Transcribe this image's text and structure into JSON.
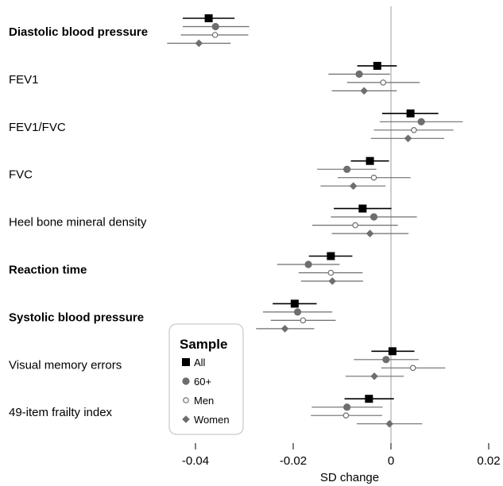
{
  "chart_data": {
    "type": "forest",
    "title": "",
    "xlabel": "SD change",
    "ylabel": "",
    "xlim": [
      -0.047,
      0.022
    ],
    "xticks": [
      -0.04,
      -0.02,
      0,
      0.02
    ],
    "xtick_labels": [
      "-0.04",
      "-0.02",
      "0",
      "0.02"
    ],
    "reference_line": 0,
    "grid": false,
    "legend": {
      "title": "Sample",
      "position": "bottom-left",
      "entries": [
        {
          "name": "All",
          "marker": "square-filled",
          "color": "#000000"
        },
        {
          "name": "60+",
          "marker": "circle-filled",
          "color": "#6e6e6e"
        },
        {
          "name": "Men",
          "marker": "circle-open",
          "color": "#6e6e6e"
        },
        {
          "name": "Women",
          "marker": "diamond-filled",
          "color": "#6e6e6e"
        }
      ]
    },
    "outcomes": [
      {
        "label": "Diastolic blood pressure",
        "bold": true
      },
      {
        "label": "FEV1",
        "bold": false
      },
      {
        "label": "FEV1/FVC",
        "bold": false
      },
      {
        "label": "FVC",
        "bold": false
      },
      {
        "label": "Heel bone mineral density",
        "bold": false
      },
      {
        "label": "Reaction time",
        "bold": true
      },
      {
        "label": "Systolic blood pressure",
        "bold": true
      },
      {
        "label": "Visual memory errors",
        "bold": false
      },
      {
        "label": "49-item frailty index",
        "bold": false
      }
    ],
    "series": [
      {
        "name": "All",
        "estimates": [
          {
            "est": -0.0373,
            "lo": -0.0426,
            "hi": -0.032
          },
          {
            "est": -0.0028,
            "lo": -0.0069,
            "hi": 0.0012
          },
          {
            "est": 0.004,
            "lo": -0.0018,
            "hi": 0.0097
          },
          {
            "est": -0.0043,
            "lo": -0.0082,
            "hi": -0.0004
          },
          {
            "est": -0.0058,
            "lo": -0.0117,
            "hi": 0.0001
          },
          {
            "est": -0.0123,
            "lo": -0.0168,
            "hi": -0.0079
          },
          {
            "est": -0.0197,
            "lo": -0.0242,
            "hi": -0.0152
          },
          {
            "est": 0.0003,
            "lo": -0.004,
            "hi": 0.0048
          },
          {
            "est": -0.0045,
            "lo": -0.0095,
            "hi": 0.0006
          }
        ]
      },
      {
        "name": "60+",
        "estimates": [
          {
            "est": -0.0359,
            "lo": -0.0426,
            "hi": -0.029
          },
          {
            "est": -0.0065,
            "lo": -0.0128,
            "hi": -0.0002
          },
          {
            "est": 0.0062,
            "lo": -0.0023,
            "hi": 0.0147
          },
          {
            "est": -0.009,
            "lo": -0.0151,
            "hi": -0.003
          },
          {
            "est": -0.0035,
            "lo": -0.0123,
            "hi": 0.0053
          },
          {
            "est": -0.0169,
            "lo": -0.0233,
            "hi": -0.0105
          },
          {
            "est": -0.0191,
            "lo": -0.0262,
            "hi": -0.012
          },
          {
            "est": -0.001,
            "lo": -0.0076,
            "hi": 0.0057
          },
          {
            "est": -0.009,
            "lo": -0.0162,
            "hi": -0.0017
          }
        ]
      },
      {
        "name": "Men",
        "estimates": [
          {
            "est": -0.036,
            "lo": -0.043,
            "hi": -0.0292
          },
          {
            "est": -0.0016,
            "lo": -0.009,
            "hi": 0.0059
          },
          {
            "est": 0.0047,
            "lo": -0.0035,
            "hi": 0.0128
          },
          {
            "est": -0.0035,
            "lo": -0.0109,
            "hi": 0.004
          },
          {
            "est": -0.0073,
            "lo": -0.0161,
            "hi": 0.0014
          },
          {
            "est": -0.0123,
            "lo": -0.0189,
            "hi": -0.0058
          },
          {
            "est": -0.018,
            "lo": -0.0246,
            "hi": -0.0113
          },
          {
            "est": 0.0045,
            "lo": -0.002,
            "hi": 0.0111
          },
          {
            "est": -0.0092,
            "lo": -0.0164,
            "hi": -0.0018
          }
        ]
      },
      {
        "name": "Women",
        "estimates": [
          {
            "est": -0.0393,
            "lo": -0.0458,
            "hi": -0.0328
          },
          {
            "est": -0.0055,
            "lo": -0.0121,
            "hi": 0.0012
          },
          {
            "est": 0.0035,
            "lo": -0.0041,
            "hi": 0.0109
          },
          {
            "est": -0.0077,
            "lo": -0.0144,
            "hi": -0.0011
          },
          {
            "est": -0.0043,
            "lo": -0.0121,
            "hi": 0.0036
          },
          {
            "est": -0.012,
            "lo": -0.0184,
            "hi": -0.0057
          },
          {
            "est": -0.0217,
            "lo": -0.0276,
            "hi": -0.0157
          },
          {
            "est": -0.0034,
            "lo": -0.0093,
            "hi": 0.0026
          },
          {
            "est": -0.0003,
            "lo": -0.007,
            "hi": 0.0064
          }
        ]
      }
    ]
  }
}
